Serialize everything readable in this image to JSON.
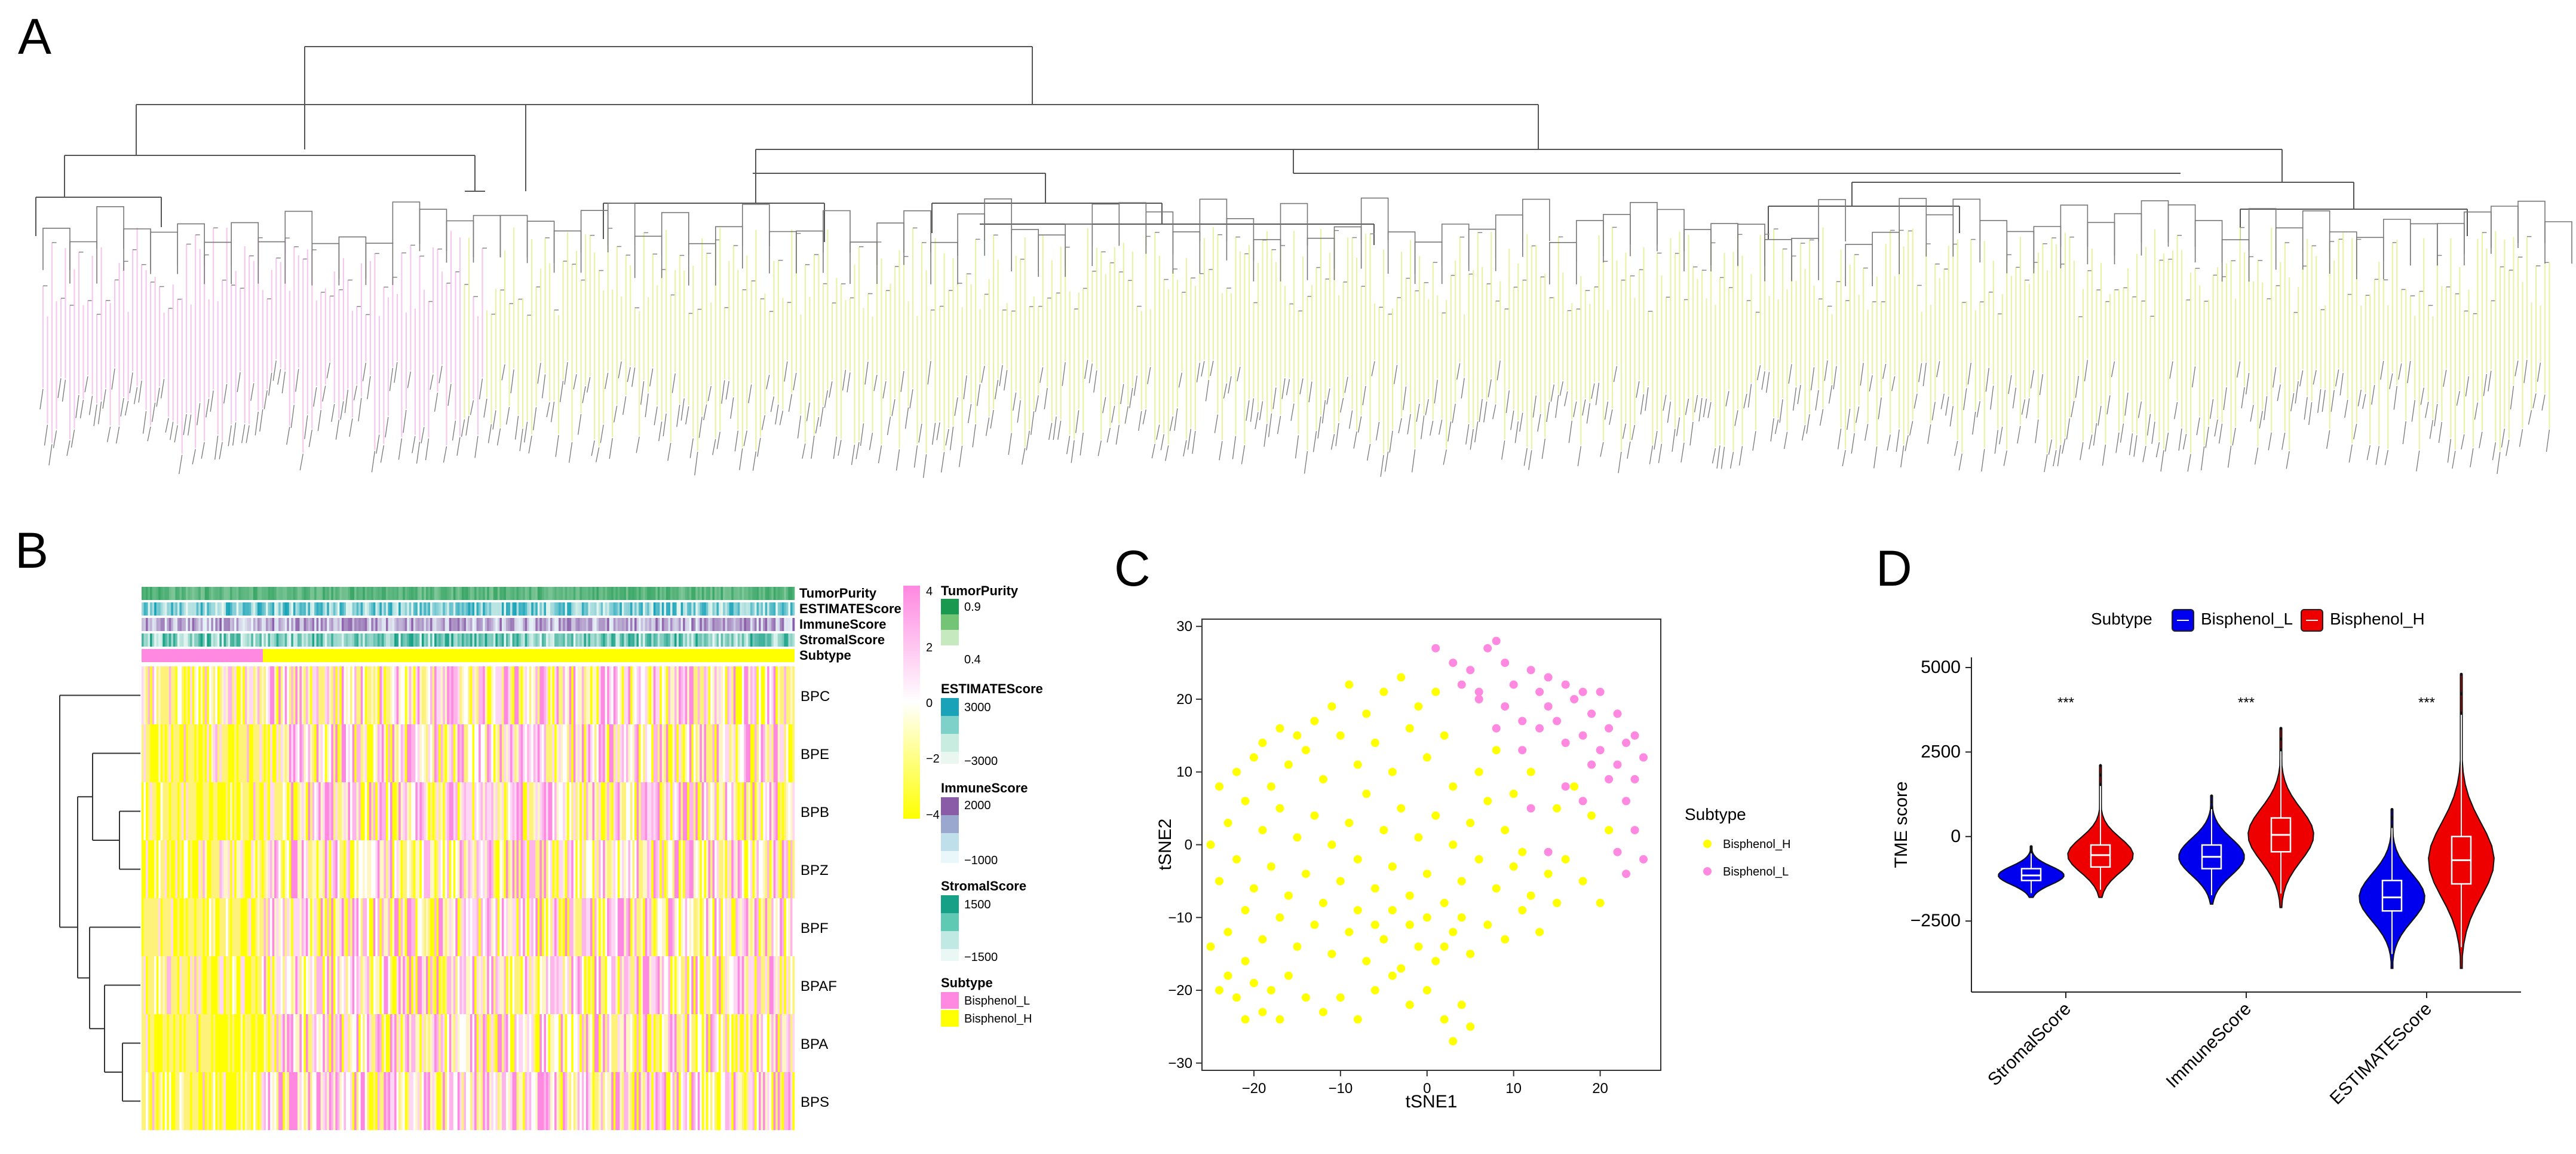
{
  "panel_labels": [
    "A",
    "B",
    "C",
    "D"
  ],
  "colors": {
    "bisphenol_l": "#ff88e0",
    "bisphenol_h": "#ffff00",
    "violin_l": "#0000ee",
    "violin_h": "#ee0000",
    "green": "#1a9850",
    "teal": "#1aa3b8",
    "purple": "#8a5ca8",
    "seagreen": "#16a085"
  },
  "chart_data": [
    {
      "panel": "A",
      "type": "dendrogram",
      "groups": [
        "Bisphenol_L",
        "Bisphenol_H"
      ]
    },
    {
      "panel": "B",
      "type": "heatmap",
      "annotation_tracks": [
        "TumorPurity",
        "ESTIMATEScore",
        "ImmuneScore",
        "StromalScore",
        "Subtype"
      ],
      "rows": [
        "BPC",
        "BPE",
        "BPB",
        "BPZ",
        "BPF",
        "BPAF",
        "BPA",
        "BPS"
      ],
      "colorbar_ticks": [
        "4",
        "2",
        "0",
        "−2",
        "−4"
      ],
      "legends": [
        {
          "title": "TumorPurity",
          "ticks": [
            "0.9",
            "0.4"
          ]
        },
        {
          "title": "ESTIMATEScore",
          "ticks": [
            "3000",
            "−3000"
          ]
        },
        {
          "title": "ImmuneScore",
          "ticks": [
            "2000",
            "−1000"
          ]
        },
        {
          "title": "StromalScore",
          "ticks": [
            "1500",
            "−1500"
          ]
        },
        {
          "title": "Subtype",
          "entries": [
            "Bisphenol_L",
            "Bisphenol_H"
          ]
        }
      ]
    },
    {
      "panel": "C",
      "type": "scatter",
      "xlabel": "tSNE1",
      "ylabel": "tSNE2",
      "xlim": [
        -26,
        27
      ],
      "ylim": [
        -31,
        31
      ],
      "xticks": [
        "−20",
        "−10",
        "0",
        "10",
        "20"
      ],
      "yticks": [
        "−30",
        "−20",
        "−10",
        "0",
        "10",
        "20",
        "30"
      ],
      "legend_title": "Subtype",
      "legend": [
        "Bisphenol_H",
        "Bisphenol_L"
      ],
      "series": [
        {
          "name": "Bisphenol_L",
          "points": [
            [
              1,
              27
            ],
            [
              3,
              25
            ],
            [
              5,
              24
            ],
            [
              7,
              27
            ],
            [
              8,
              28
            ],
            [
              9,
              25
            ],
            [
              10,
              22
            ],
            [
              12,
              24
            ],
            [
              13,
              21
            ],
            [
              14,
              23
            ],
            [
              16,
              22
            ],
            [
              17,
              20
            ],
            [
              18,
              21
            ],
            [
              19,
              18
            ],
            [
              20,
              21
            ],
            [
              21,
              16
            ],
            [
              22,
              18
            ],
            [
              23,
              14
            ],
            [
              24,
              15
            ],
            [
              25,
              12
            ],
            [
              6,
              20
            ],
            [
              9,
              19
            ],
            [
              11,
              17
            ],
            [
              14,
              19
            ],
            [
              15,
              17
            ],
            [
              18,
              15
            ],
            [
              20,
              13
            ],
            [
              22,
              11
            ],
            [
              24,
              9
            ],
            [
              11,
              13
            ],
            [
              13,
              16
            ],
            [
              16,
              14
            ],
            [
              19,
              11
            ],
            [
              21,
              9
            ],
            [
              23,
              6
            ],
            [
              24,
              2
            ],
            [
              25,
              -2
            ],
            [
              22,
              -1
            ],
            [
              18,
              6
            ],
            [
              16,
              8
            ],
            [
              12,
              5
            ],
            [
              14,
              -1
            ],
            [
              6,
              21
            ],
            [
              4,
              22
            ],
            [
              8,
              16
            ],
            [
              23,
              -4
            ]
          ]
        },
        {
          "name": "Bisphenol_H",
          "points": [
            [
              -24,
              -20
            ],
            [
              -22,
              -21
            ],
            [
              -20,
              -19
            ],
            [
              -21,
              -16
            ],
            [
              -19,
              -23
            ],
            [
              -17,
              -24
            ],
            [
              -18,
              -20
            ],
            [
              -16,
              -18
            ],
            [
              -14,
              -21
            ],
            [
              -12,
              -23
            ],
            [
              -10,
              -21
            ],
            [
              -8,
              -24
            ],
            [
              -6,
              -20
            ],
            [
              -4,
              -18
            ],
            [
              -2,
              -22
            ],
            [
              0,
              -20
            ],
            [
              2,
              -24
            ],
            [
              3,
              -27
            ],
            [
              4,
              -22
            ],
            [
              5,
              -25
            ],
            [
              -23,
              -12
            ],
            [
              -21,
              -9
            ],
            [
              -19,
              -13
            ],
            [
              -17,
              -10
            ],
            [
              -15,
              -14
            ],
            [
              -13,
              -11
            ],
            [
              -11,
              -15
            ],
            [
              -9,
              -12
            ],
            [
              -7,
              -16
            ],
            [
              -5,
              -13
            ],
            [
              -3,
              -17
            ],
            [
              -1,
              -14
            ],
            [
              1,
              -16
            ],
            [
              3,
              -12
            ],
            [
              5,
              -15
            ],
            [
              7,
              -11
            ],
            [
              9,
              -13
            ],
            [
              11,
              -9
            ],
            [
              13,
              -12
            ],
            [
              15,
              -8
            ],
            [
              -24,
              -5
            ],
            [
              -22,
              -2
            ],
            [
              -20,
              -6
            ],
            [
              -18,
              -3
            ],
            [
              -16,
              -7
            ],
            [
              -14,
              -4
            ],
            [
              -12,
              -8
            ],
            [
              -10,
              -5
            ],
            [
              -8,
              -2
            ],
            [
              -6,
              -6
            ],
            [
              -4,
              -3
            ],
            [
              -2,
              -7
            ],
            [
              0,
              -4
            ],
            [
              2,
              -8
            ],
            [
              4,
              -5
            ],
            [
              6,
              -2
            ],
            [
              8,
              -6
            ],
            [
              10,
              -3
            ],
            [
              12,
              -7
            ],
            [
              14,
              -4
            ],
            [
              16,
              -2
            ],
            [
              18,
              -5
            ],
            [
              20,
              -8
            ],
            [
              -23,
              3
            ],
            [
              -21,
              6
            ],
            [
              -19,
              2
            ],
            [
              -17,
              5
            ],
            [
              -15,
              1
            ],
            [
              -13,
              4
            ],
            [
              -11,
              0
            ],
            [
              -9,
              3
            ],
            [
              -7,
              7
            ],
            [
              -5,
              2
            ],
            [
              -3,
              5
            ],
            [
              -1,
              1
            ],
            [
              1,
              4
            ],
            [
              3,
              0
            ],
            [
              5,
              3
            ],
            [
              7,
              6
            ],
            [
              9,
              2
            ],
            [
              11,
              -1
            ],
            [
              -22,
              10
            ],
            [
              -20,
              12
            ],
            [
              -18,
              8
            ],
            [
              -16,
              11
            ],
            [
              -14,
              13
            ],
            [
              -12,
              9
            ],
            [
              -10,
              15
            ],
            [
              -8,
              11
            ],
            [
              -6,
              14
            ],
            [
              -4,
              10
            ],
            [
              -2,
              16
            ],
            [
              0,
              12
            ],
            [
              2,
              15
            ],
            [
              -11,
              19
            ],
            [
              -9,
              22
            ],
            [
              -7,
              18
            ],
            [
              -5,
              21
            ],
            [
              -3,
              23
            ],
            [
              -1,
              19
            ],
            [
              1,
              21
            ],
            [
              -13,
              17
            ],
            [
              -15,
              15
            ],
            [
              -17,
              16
            ],
            [
              -19,
              14
            ],
            [
              -21,
              -24
            ],
            [
              -23,
              -18
            ],
            [
              -25,
              -14
            ],
            [
              -24,
              8
            ],
            [
              -25,
              0
            ],
            [
              3,
              8
            ],
            [
              6,
              10
            ],
            [
              8,
              13
            ],
            [
              10,
              7
            ],
            [
              12,
              10
            ],
            [
              15,
              5
            ],
            [
              17,
              8
            ],
            [
              19,
              4
            ],
            [
              21,
              2
            ],
            [
              2,
              -14
            ],
            [
              4,
              -10
            ],
            [
              0,
              -10
            ],
            [
              -2,
              -11
            ],
            [
              -4,
              -9
            ],
            [
              -6,
              -11
            ],
            [
              -8,
              -9
            ]
          ]
        }
      ]
    },
    {
      "panel": "D",
      "type": "violin",
      "legend_title": "Subtype",
      "legend": [
        "Bisphenol_L",
        "Bisphenol_H"
      ],
      "ylabel": "TME score",
      "yticks": [
        "5000",
        "2500",
        "0",
        "−2500"
      ],
      "ylim": [
        -4600,
        5300
      ],
      "categories": [
        "StromalScore",
        "ImmuneScore",
        "ESTIMATEScore"
      ],
      "significance": [
        "***",
        "***",
        "***"
      ],
      "series": [
        {
          "name": "Bisphenol_L",
          "data": [
            {
              "min": -1800,
              "q1": -1300,
              "median": -1150,
              "q3": -950,
              "max": -300
            },
            {
              "min": -2000,
              "q1": -950,
              "median": -600,
              "q3": -250,
              "max": 1200
            },
            {
              "min": -3900,
              "q1": -2200,
              "median": -1800,
              "q3": -1300,
              "max": 800
            }
          ]
        },
        {
          "name": "Bisphenol_H",
          "data": [
            {
              "min": -1800,
              "q1": -900,
              "median": -550,
              "q3": -250,
              "max": 2100
            },
            {
              "min": -2100,
              "q1": -450,
              "median": 50,
              "q3": 550,
              "max": 3200
            },
            {
              "min": -3900,
              "q1": -1400,
              "median": -700,
              "q3": 0,
              "max": 4800
            }
          ]
        }
      ]
    }
  ]
}
